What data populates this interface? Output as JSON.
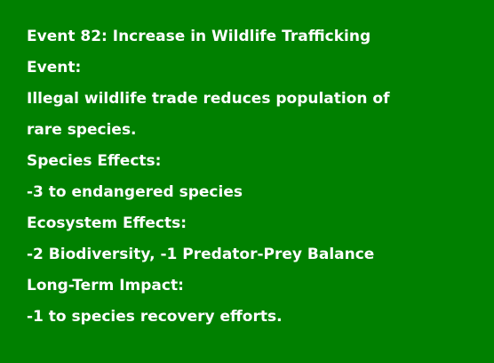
{
  "event_card": {
    "colors": {
      "background": "#008000",
      "text": "#ffffff"
    },
    "lines": [
      "Event 82: Increase in Wildlife Trafficking",
      "Event:",
      "Illegal wildlife trade reduces population of",
      "rare species.",
      "Species Effects:",
      "-3 to endangered species",
      "Ecosystem Effects:",
      "-2 Biodiversity, -1 Predator-Prey Balance",
      "Long-Term Impact:",
      "-1 to species recovery efforts."
    ]
  }
}
